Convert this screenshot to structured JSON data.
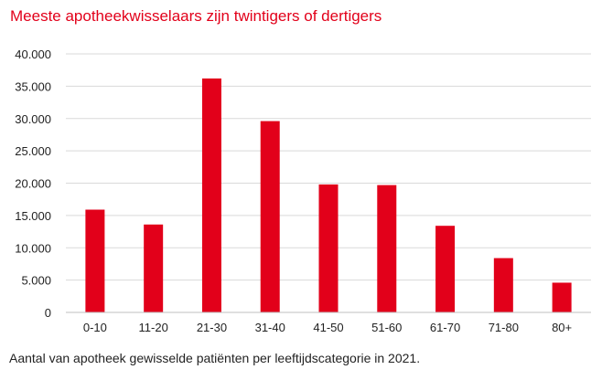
{
  "chart_data": {
    "type": "bar",
    "title": "Meeste apotheekwisselaars zijn twintigers of dertigers",
    "caption": "Aantal van apotheek gewisselde patiënten per leeftijdscategorie in 2021.",
    "categories": [
      "0-10",
      "11-20",
      "21-30",
      "31-40",
      "41-50",
      "51-60",
      "61-70",
      "71-80",
      "80+"
    ],
    "values": [
      15900,
      13600,
      36200,
      29600,
      19800,
      19700,
      13400,
      8400,
      4600
    ],
    "ylim": [
      0,
      40000
    ],
    "yticks": [
      0,
      5000,
      10000,
      15000,
      20000,
      25000,
      30000,
      35000,
      40000
    ],
    "ytick_labels": [
      "0",
      "5.000",
      "10.000",
      "15.000",
      "20.000",
      "25.000",
      "30.000",
      "35.000",
      "40.000"
    ],
    "xlabel": "",
    "ylabel": "",
    "grid": true,
    "legend": "none",
    "bar_color": "#e2001a",
    "grid_color": "#d9d9d9",
    "title_color": "#e2001a"
  }
}
